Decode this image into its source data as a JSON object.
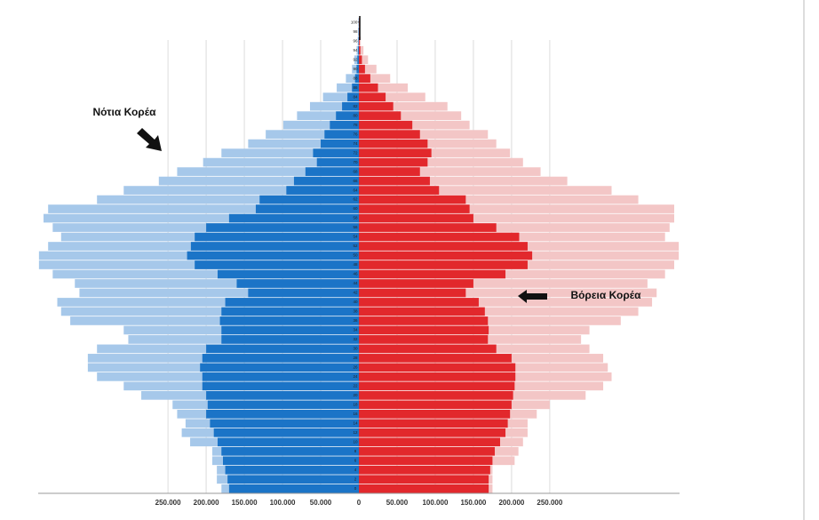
{
  "chart_data": {
    "type": "pyramid",
    "annotations": [
      "Νότια Κορέα",
      "Βόρεια Κορέα"
    ],
    "categories": [
      "0",
      "2",
      "4",
      "6",
      "8",
      "10",
      "12",
      "14",
      "16",
      "18",
      "20",
      "22",
      "24",
      "26",
      "28",
      "30",
      "32",
      "34",
      "36",
      "38",
      "40",
      "42",
      "44",
      "46",
      "48",
      "50",
      "52",
      "54",
      "56",
      "58",
      "60",
      "62",
      "64",
      "66",
      "68",
      "70",
      "72",
      "74",
      "76",
      "78",
      "80",
      "82",
      "84",
      "86",
      "88",
      "90",
      "92",
      "94",
      "96",
      "98",
      "100+"
    ],
    "series": [
      {
        "color": "#a6c8ea",
        "side": "left",
        "values": [
          180000,
          186000,
          186000,
          192000,
          192000,
          221000,
          232000,
          227000,
          238000,
          244000,
          285000,
          308000,
          343000,
          355000,
          355000,
          343000,
          302000,
          308000,
          378000,
          390000,
          395000,
          366000,
          372000,
          401000,
          419000,
          419000,
          407000,
          390000,
          401000,
          413000,
          407000,
          343000,
          308000,
          262000,
          238000,
          204000,
          180000,
          145000,
          122000,
          99000,
          81000,
          64000,
          47000,
          29000,
          17000,
          9000,
          6000,
          3000,
          1500,
          1000,
          500
        ]
      },
      {
        "color": "#f3c6c6",
        "side": "right",
        "values": [
          175000,
          175000,
          175000,
          204000,
          209000,
          215000,
          221000,
          221000,
          233000,
          250000,
          297000,
          320000,
          331000,
          326000,
          320000,
          302000,
          291000,
          302000,
          343000,
          366000,
          384000,
          390000,
          378000,
          401000,
          413000,
          419000,
          419000,
          401000,
          407000,
          413000,
          413000,
          366000,
          331000,
          273000,
          238000,
          215000,
          198000,
          180000,
          169000,
          145000,
          134000,
          116000,
          87000,
          64000,
          41000,
          23000,
          12000,
          6000,
          2500,
          1200,
          600
        ]
      },
      {
        "color": "#1b74c7",
        "side": "left",
        "values": [
          170000,
          172000,
          175000,
          178000,
          180000,
          185000,
          190000,
          195000,
          200000,
          198000,
          200000,
          205000,
          205000,
          208000,
          205000,
          200000,
          180000,
          180000,
          182000,
          180000,
          175000,
          145000,
          160000,
          185000,
          215000,
          225000,
          220000,
          215000,
          200000,
          170000,
          135000,
          130000,
          95000,
          85000,
          70000,
          55000,
          60000,
          50000,
          45000,
          38000,
          30000,
          22000,
          15000,
          9000,
          5000,
          3000,
          2000,
          1000,
          500,
          300,
          200
        ]
      },
      {
        "color": "#e2282c",
        "side": "right",
        "values": [
          170000,
          170000,
          172000,
          175000,
          178000,
          185000,
          192000,
          195000,
          198000,
          200000,
          202000,
          204000,
          205000,
          205000,
          200000,
          180000,
          169000,
          170000,
          169000,
          165000,
          157000,
          140000,
          150000,
          192000,
          221000,
          227000,
          221000,
          210000,
          180000,
          150000,
          145000,
          140000,
          105000,
          93000,
          80000,
          90000,
          95000,
          90000,
          80000,
          70000,
          55000,
          45000,
          35000,
          25000,
          15000,
          8000,
          4000,
          2000,
          1000,
          500,
          300
        ]
      }
    ],
    "xlim": [
      -420000,
      420000
    ],
    "xticks": [
      {
        "value": -250000,
        "label": "250.000"
      },
      {
        "value": -200000,
        "label": "200.000"
      },
      {
        "value": -150000,
        "label": "150.000"
      },
      {
        "value": -100000,
        "label": "100.000"
      },
      {
        "value": -50000,
        "label": "50.000"
      },
      0,
      {
        "value": 50000,
        "label": "50.000"
      },
      {
        "value": 100000,
        "label": "100.000"
      },
      {
        "value": 150000,
        "label": "150.000"
      },
      {
        "value": 200000,
        "label": "200.000"
      },
      {
        "value": 250000,
        "label": "250.000"
      }
    ],
    "grid": true
  }
}
